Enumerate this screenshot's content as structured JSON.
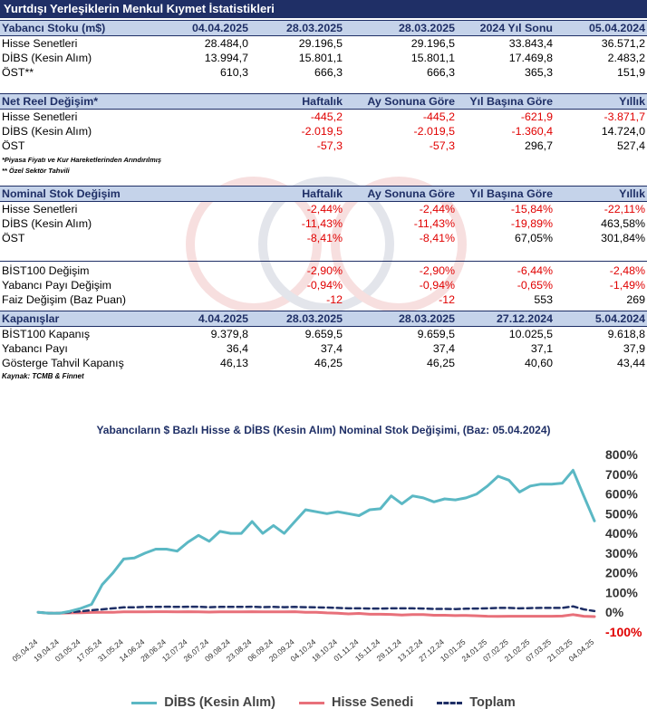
{
  "title": "Yurtdışı Yerleşiklerin Menkul Kıymet İstatistikleri",
  "stock": {
    "header": [
      "Yabancı Stoku (m$)",
      "04.04.2025",
      "28.03.2025",
      "28.03.2025",
      "2024 Yıl Sonu",
      "05.04.2024"
    ],
    "rows": [
      [
        "Hisse Senetleri",
        "28.484,0",
        "29.196,5",
        "29.196,5",
        "33.843,4",
        "36.571,2"
      ],
      [
        "DİBS (Kesin Alım)",
        "13.994,7",
        "15.801,1",
        "15.801,1",
        "17.469,8",
        "2.483,2"
      ],
      [
        "ÖST**",
        "610,3",
        "666,3",
        "666,3",
        "365,3",
        "151,9"
      ]
    ]
  },
  "net_real": {
    "header": [
      "Net Reel Değişim*",
      "Haftalık",
      "Ay Sonuna Göre",
      "Yıl Başına Göre",
      "Yıllık"
    ],
    "rows": [
      [
        "Hisse Senetleri",
        "-445,2",
        "-445,2",
        "-621,9",
        "-3.871,7"
      ],
      [
        "DİBS (Kesin Alım)",
        "-2.019,5",
        "-2.019,5",
        "-1.360,4",
        "14.724,0"
      ],
      [
        "ÖST",
        "-57,3",
        "-57,3",
        "296,7",
        "527,4"
      ]
    ],
    "note1": "*Piyasa Fiyatı ve Kur Hareketlerinden Arındırılmış",
    "note2": "** Özel Sektör Tahvili"
  },
  "nominal": {
    "header": [
      "Nominal Stok Değişim",
      "Haftalık",
      "Ay Sonuna Göre",
      "Yıl Başına Göre",
      "Yıllık"
    ],
    "rows": [
      [
        "Hisse Senetleri",
        "-2,44%",
        "-2,44%",
        "-15,84%",
        "-22,11%"
      ],
      [
        "DİBS (Kesin Alım)",
        "-11,43%",
        "-11,43%",
        "-19,89%",
        "463,58%"
      ],
      [
        "ÖST",
        "-8,41%",
        "-8,41%",
        "67,05%",
        "301,84%"
      ]
    ]
  },
  "misc": {
    "rows": [
      [
        "BİST100 Değişim",
        "-2,90%",
        "-2,90%",
        "-6,44%",
        "-2,48%"
      ],
      [
        "Yabancı Payı Değişim",
        "-0,94%",
        "-0,94%",
        "-0,65%",
        "-1,49%"
      ],
      [
        "Faiz Değişim (Baz Puan)",
        "-12",
        "-12",
        "553",
        "269"
      ]
    ]
  },
  "closing": {
    "header": [
      "Kapanışlar",
      "4.04.2025",
      "28.03.2025",
      "28.03.2025",
      "27.12.2024",
      "5.04.2024"
    ],
    "rows": [
      [
        "BİST100 Kapanış",
        "9.379,8",
        "9.659,5",
        "9.659,5",
        "10.025,5",
        "9.618,8"
      ],
      [
        "Yabancı Payı",
        "36,4",
        "37,4",
        "37,4",
        "37,1",
        "37,9"
      ],
      [
        "Gösterge Tahvil Kapanış",
        "46,13",
        "46,25",
        "46,25",
        "40,60",
        "43,44"
      ]
    ],
    "source": "Kaynak: TCMB & Finnet"
  },
  "chart_data": {
    "type": "line",
    "title": "Yabancıların $ Bazlı Hisse & DİBS (Kesin Alım) Nominal Stok Değişimi, (Baz: 05.04.2024)",
    "x": [
      "05.04.24",
      "12.04.24",
      "19.04.24",
      "26.04.24",
      "03.05.24",
      "10.05.24",
      "17.05.24",
      "24.05.24",
      "31.05.24",
      "07.06.24",
      "14.06.24",
      "21.06.24",
      "28.06.24",
      "05.07.24",
      "12.07.24",
      "19.07.24",
      "26.07.24",
      "02.08.24",
      "09.08.24",
      "16.08.24",
      "23.08.24",
      "30.08.24",
      "06.09.24",
      "13.09.24",
      "20.09.24",
      "27.09.24",
      "04.10.24",
      "11.10.24",
      "18.10.24",
      "25.10.24",
      "01.11.24",
      "08.11.24",
      "15.11.24",
      "22.11.24",
      "29.11.24",
      "06.12.24",
      "13.12.24",
      "20.12.24",
      "27.12.24",
      "03.01.25",
      "10.01.25",
      "17.01.25",
      "24.01.25",
      "31.01.25",
      "07.02.25",
      "14.02.25",
      "21.02.25",
      "28.02.25",
      "07.03.25",
      "14.03.25",
      "21.03.25",
      "28.03.25",
      "04.04.25"
    ],
    "x_tick_labels": [
      "05.04.24",
      "19.04.24",
      "03.05.24",
      "17.05.24",
      "31.05.24",
      "14.06.24",
      "28.06.24",
      "12.07.24",
      "26.07.24",
      "09.08.24",
      "23.08.24",
      "06.09.24",
      "20.09.24",
      "04.10.24",
      "18.10.24",
      "01.11.24",
      "15.11.24",
      "29.11.24",
      "13.12.24",
      "27.12.24",
      "10.01.25",
      "24.01.25",
      "07.02.25",
      "21.02.25",
      "07.03.25",
      "21.03.25",
      "04.04.25"
    ],
    "ylim": [
      -100,
      800
    ],
    "yticks": [
      -100,
      0,
      100,
      200,
      300,
      400,
      500,
      600,
      700,
      800
    ],
    "ytick_labels": [
      "-100%",
      "0%",
      "100%",
      "200%",
      "300%",
      "400%",
      "500%",
      "600%",
      "700%",
      "800%"
    ],
    "series": [
      {
        "name": "DİBS (Kesin Alım)",
        "color": "#5bb8c4",
        "values": [
          0,
          -5,
          -5,
          5,
          20,
          40,
          140,
          200,
          270,
          275,
          300,
          320,
          320,
          310,
          355,
          390,
          360,
          410,
          400,
          400,
          460,
          400,
          440,
          400,
          460,
          520,
          510,
          500,
          510,
          500,
          490,
          520,
          525,
          590,
          550,
          590,
          580,
          560,
          575,
          570,
          580,
          600,
          640,
          690,
          670,
          610,
          640,
          650,
          650,
          655,
          720,
          590,
          463.6
        ]
      },
      {
        "name": "Hisse Senedi",
        "color": "#e8707a",
        "values": [
          0,
          -5,
          -5,
          -3,
          -2,
          -1,
          0,
          0,
          2,
          2,
          2,
          3,
          3,
          2,
          3,
          2,
          1,
          2,
          2,
          2,
          3,
          2,
          2,
          2,
          3,
          0,
          0,
          -3,
          -5,
          -8,
          -6,
          -10,
          -10,
          -11,
          -14,
          -12,
          -12,
          -15,
          -15,
          -17,
          -16,
          -18,
          -20,
          -21,
          -20,
          -20,
          -20,
          -20,
          -20,
          -19,
          -12,
          -20,
          -22.1
        ]
      },
      {
        "name": "Toplam",
        "color": "#1f2f66",
        "values": [
          0,
          -4,
          -4,
          0,
          5,
          10,
          15,
          20,
          25,
          25,
          27,
          27,
          28,
          27,
          28,
          28,
          26,
          27,
          27,
          27,
          28,
          26,
          27,
          26,
          27,
          26,
          25,
          24,
          22,
          20,
          20,
          19,
          19,
          20,
          20,
          20,
          19,
          17,
          17,
          16,
          18,
          19,
          20,
          22,
          22,
          20,
          21,
          22,
          22,
          22,
          30,
          15,
          6
        ]
      }
    ]
  }
}
